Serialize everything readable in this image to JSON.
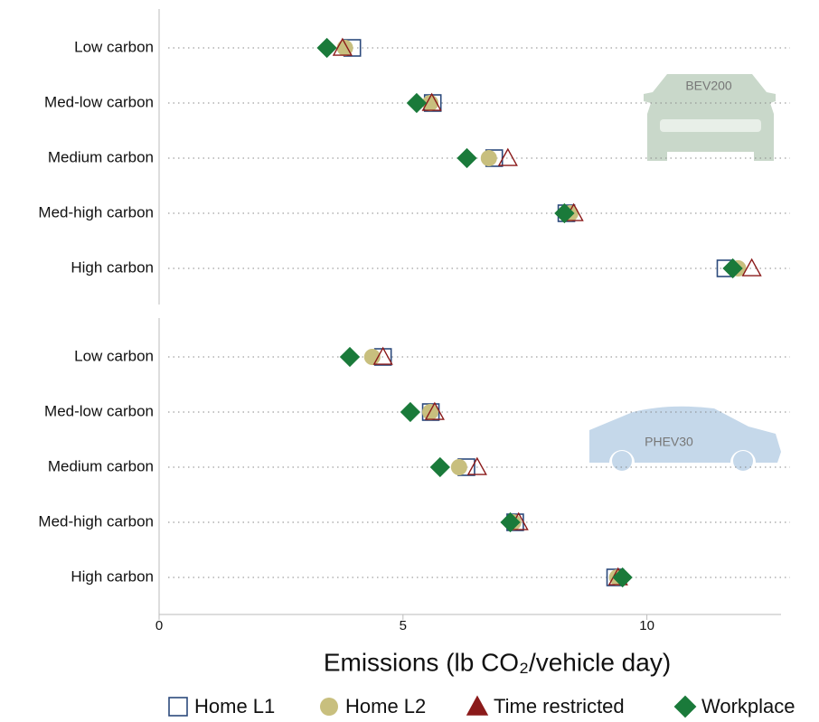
{
  "chart_data": [
    {
      "type": "dot",
      "panel_label": "BEV200",
      "categories": [
        "Low carbon",
        "Med-low carbon",
        "Medium carbon",
        "Med-high carbon",
        "High carbon"
      ],
      "xlim": [
        0,
        12.75
      ],
      "series": [
        {
          "name": "Home L1",
          "color": "#2c4a7c",
          "marker": "square",
          "values": [
            3.96,
            5.61,
            6.87,
            8.35,
            11.61
          ]
        },
        {
          "name": "Home L2",
          "color": "#c8bf7e",
          "marker": "circle",
          "values": [
            3.81,
            5.56,
            6.76,
            8.43,
            11.87
          ]
        },
        {
          "name": "Time restricted",
          "color": "#8b1a1a",
          "marker": "triangle",
          "values": [
            3.76,
            5.59,
            7.15,
            8.5,
            12.15
          ]
        },
        {
          "name": "Workplace",
          "color": "#1a7a3a",
          "marker": "diamond",
          "values": [
            3.44,
            5.28,
            6.31,
            8.31,
            11.76
          ]
        }
      ]
    },
    {
      "type": "dot",
      "panel_label": "PHEV30",
      "categories": [
        "Low carbon",
        "Med-low carbon",
        "Medium carbon",
        "Med-high carbon",
        "High carbon"
      ],
      "xlim": [
        0,
        12.75
      ],
      "xticks": [
        0,
        5,
        10
      ],
      "xlabel": "Emissions (lb CO₂/vehicle day)",
      "series": [
        {
          "name": "Home L1",
          "color": "#2c4a7c",
          "marker": "square",
          "values": [
            4.59,
            5.57,
            6.3,
            7.3,
            9.35
          ]
        },
        {
          "name": "Home L2",
          "color": "#c8bf7e",
          "marker": "circle",
          "values": [
            4.37,
            5.56,
            6.15,
            7.26,
            9.39
          ]
        },
        {
          "name": "Time restricted",
          "color": "#8b1a1a",
          "marker": "triangle",
          "values": [
            4.59,
            5.65,
            6.52,
            7.37,
            9.41
          ]
        },
        {
          "name": "Workplace",
          "color": "#1a7a3a",
          "marker": "diamond",
          "values": [
            3.91,
            5.15,
            5.76,
            7.2,
            9.5
          ]
        }
      ]
    }
  ]
}
